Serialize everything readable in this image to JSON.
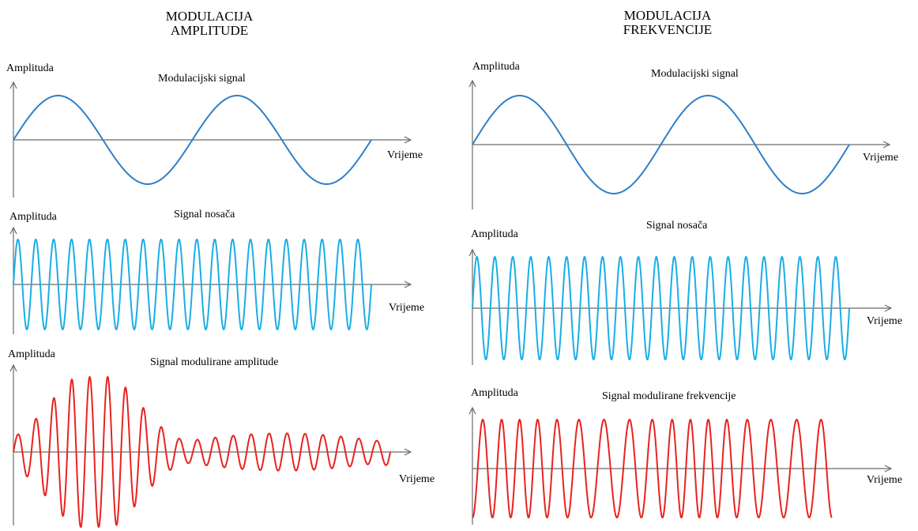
{
  "am": {
    "title_line1": "MODULACIJA",
    "title_line2": "AMPLITUDE",
    "panels": [
      {
        "ylabel": "Amplituda",
        "caption": "Modulacijski signal",
        "xlabel": "Vrijeme",
        "color": "#2f7fc8"
      },
      {
        "ylabel": "Amplituda",
        "caption": "Signal nosača",
        "xlabel": "Vrijeme",
        "color": "#1aaee6"
      },
      {
        "ylabel": "Amplituda",
        "caption": "Signal modulirane amplitude",
        "xlabel": "Vrijeme",
        "color": "#e8231f"
      }
    ]
  },
  "fm": {
    "title_line1": "MODULACIJA",
    "title_line2": "FREKVENCIJE",
    "panels": [
      {
        "ylabel": "Amplituda",
        "caption": "Modulacijski signal",
        "xlabel": "Vrijeme",
        "color": "#2f7fc8"
      },
      {
        "ylabel": "Amplituda",
        "caption": "Signal nosača",
        "xlabel": "Vrijeme",
        "color": "#1aaee6"
      },
      {
        "ylabel": "Amplituda",
        "caption": "Signal modulirane frekvencije",
        "xlabel": "Vrijeme",
        "color": "#e8231f"
      }
    ]
  }
}
